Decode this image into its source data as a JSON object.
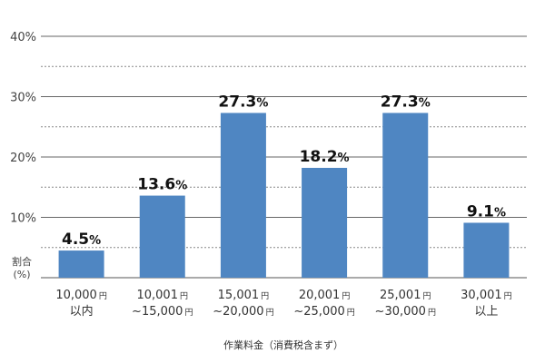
{
  "chart_data": {
    "type": "bar",
    "categories": [
      {
        "line1": "10,000",
        "line1_unit": "円",
        "line2": "以内",
        "line2_unit": ""
      },
      {
        "line1": "10,001",
        "line1_unit": "円",
        "line2": "~15,000",
        "line2_unit": "円"
      },
      {
        "line1": "15,001",
        "line1_unit": "円",
        "line2": "~20,000",
        "line2_unit": "円"
      },
      {
        "line1": "20,001",
        "line1_unit": "円",
        "line2": "~25,000",
        "line2_unit": "円"
      },
      {
        "line1": "25,001",
        "line1_unit": "円",
        "line2": "~30,000",
        "line2_unit": "円"
      },
      {
        "line1": "30,001",
        "line1_unit": "円",
        "line2": "以上",
        "line2_unit": ""
      }
    ],
    "values": [
      4.5,
      13.6,
      27.3,
      18.2,
      27.3,
      9.1
    ],
    "value_labels": [
      "4.5",
      "13.6",
      "27.3",
      "18.2",
      "27.3",
      "9.1"
    ],
    "value_unit": "%",
    "ylim": [
      0,
      40
    ],
    "yticks": [
      {
        "value": 40,
        "label": "40%"
      },
      {
        "value": 30,
        "label": "30%"
      },
      {
        "value": 20,
        "label": "20%"
      },
      {
        "value": 10,
        "label": "10%"
      }
    ],
    "minor_gridlines": [
      5,
      15,
      25,
      35
    ],
    "ylabel_line1": "割合",
    "ylabel_line2": "(%)",
    "xlabel": "作業料金（消費税含まず）",
    "bar_color": "#4f86c2",
    "grid": true
  }
}
